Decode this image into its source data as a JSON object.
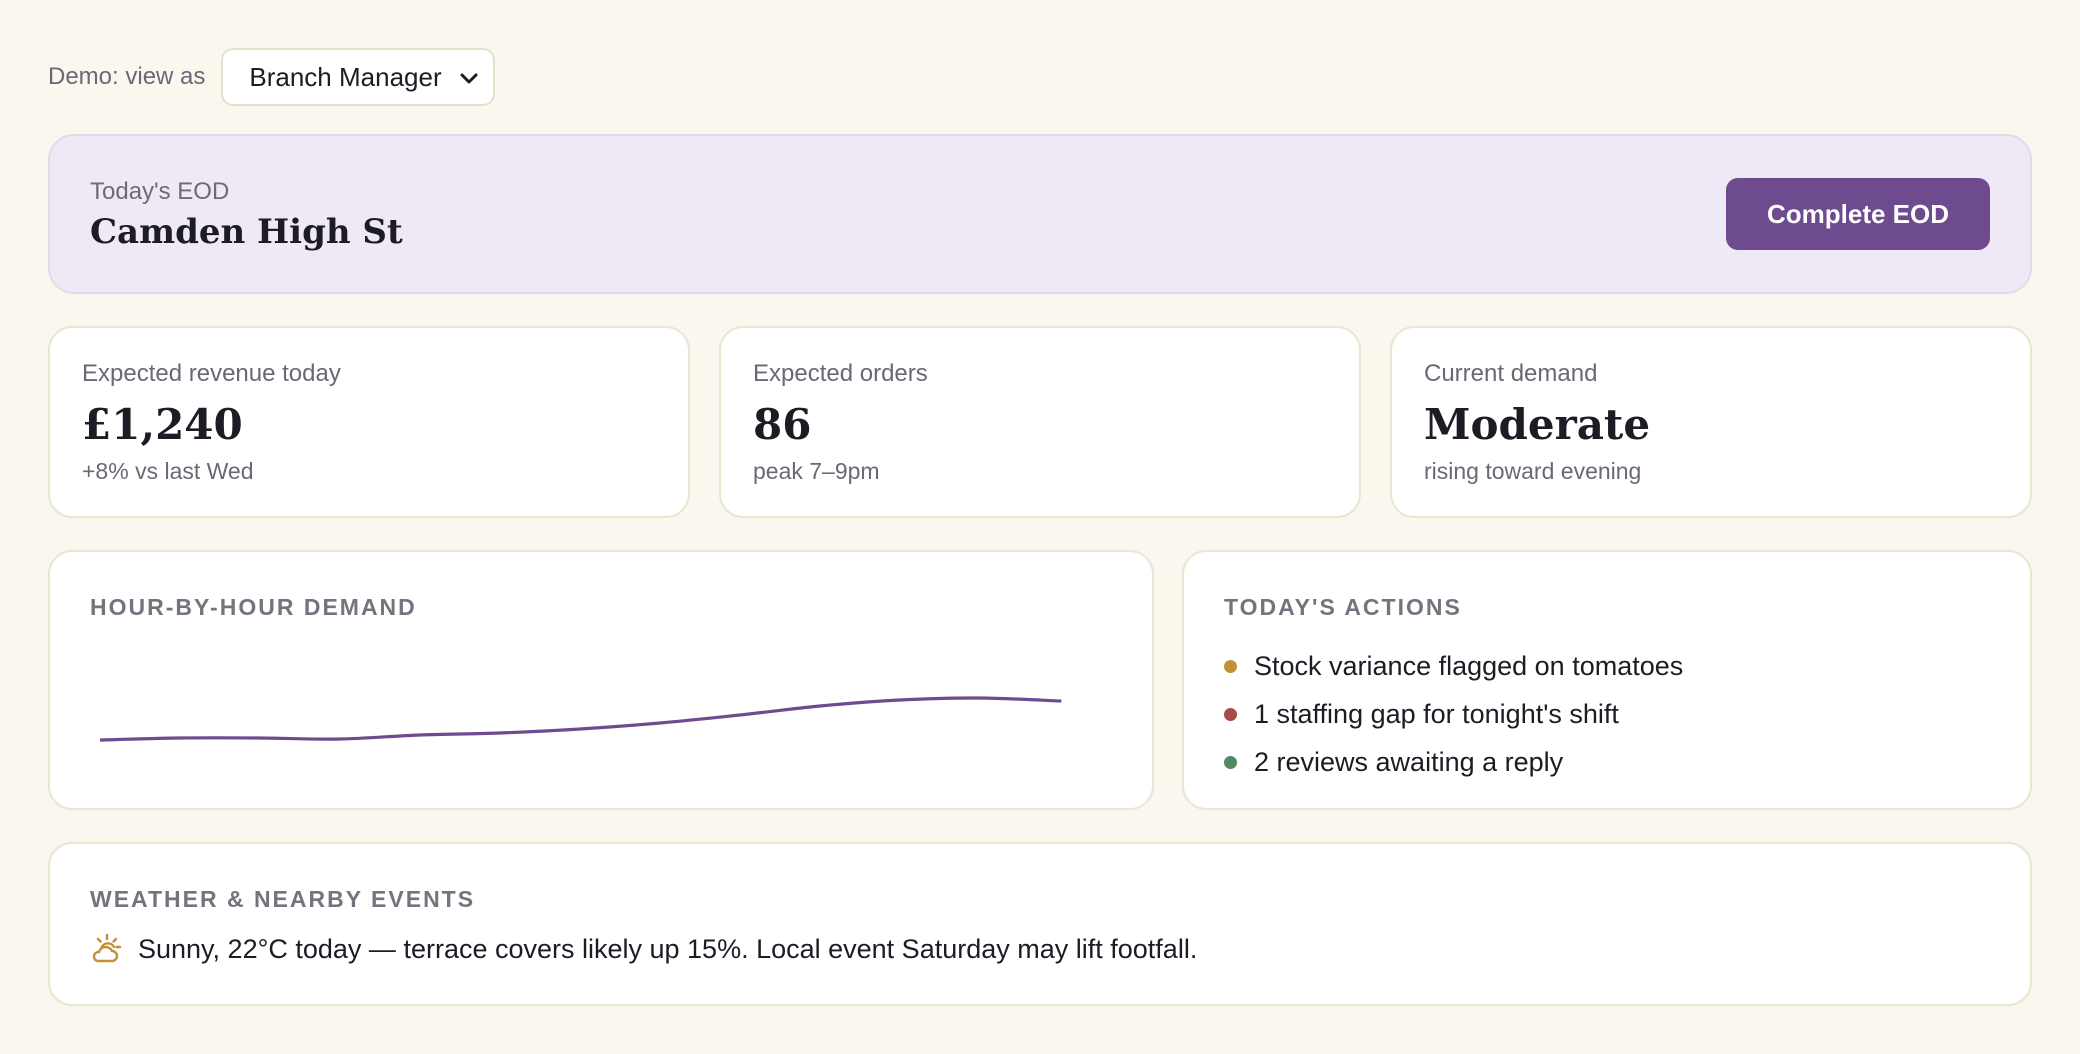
{
  "role_picker": {
    "label": "Demo: view as",
    "selected": "Branch Manager",
    "icon": "chevron-down-icon"
  },
  "hero": {
    "eyebrow": "Today's EOD",
    "branch": "Camden High St",
    "button_label": "Complete EOD",
    "button_color": "#6e4b8e",
    "background_color": "#efe8f5"
  },
  "kpis": [
    {
      "label": "Expected revenue today",
      "value": "£1,240",
      "sub": "+8% vs last Wed"
    },
    {
      "label": "Expected orders",
      "value": "86",
      "sub": "peak 7–9pm"
    },
    {
      "label": "Current demand",
      "value": "Moderate",
      "sub": "rising toward evening"
    }
  ],
  "demand_panel": {
    "title": "HOUR-BY-HOUR DEMAND"
  },
  "chart_data": {
    "type": "line",
    "title": "HOUR-BY-HOUR DEMAND",
    "xlabel": "",
    "ylabel": "",
    "grid": false,
    "legend": "none",
    "ylim": [
      0,
      1
    ],
    "series": [
      {
        "values": [
          0.12,
          0.14,
          0.14,
          0.13,
          0.17,
          0.19,
          0.23,
          0.29,
          0.37,
          0.46,
          0.52,
          0.54,
          0.51
        ]
      }
    ],
    "line_color": "#6e4b8e"
  },
  "actions_panel": {
    "title": "TODAY'S ACTIONS",
    "items": [
      {
        "text": "Stock variance flagged on tomatoes",
        "color": "#c1913a"
      },
      {
        "text": "1 staffing gap for tonight's shift",
        "color": "#a84a47"
      },
      {
        "text": "2 reviews awaiting a reply",
        "color": "#4f8a62"
      }
    ]
  },
  "weather_panel": {
    "title": "WEATHER & NEARBY EVENTS",
    "icon": "sun-cloud-icon",
    "text": "Sunny, 22°C today — terrace covers likely up 15%. Local event Saturday may lift footfall."
  }
}
